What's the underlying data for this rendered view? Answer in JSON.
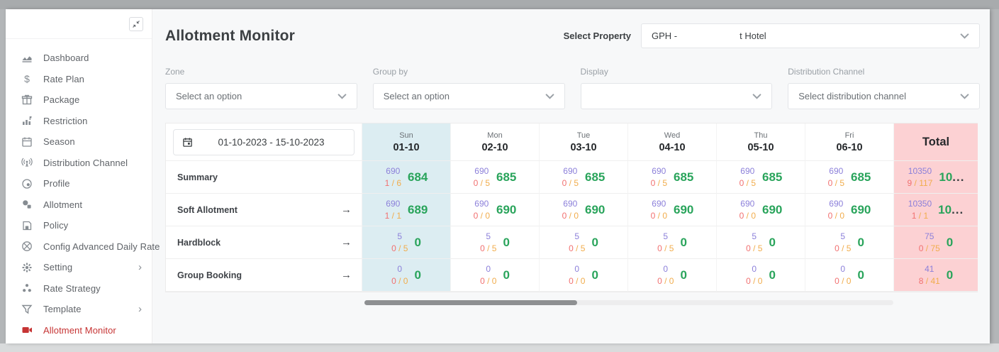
{
  "header": {
    "title": "Allotment Monitor",
    "select_property_label": "Select Property",
    "property_code": "GPH -",
    "property_name": "t Hotel"
  },
  "sidebar": {
    "items": [
      {
        "label": "Dashboard",
        "icon": "dashboard-icon"
      },
      {
        "label": "Rate Plan",
        "icon": "dollar-icon"
      },
      {
        "label": "Package",
        "icon": "package-icon"
      },
      {
        "label": "Restriction",
        "icon": "restriction-icon"
      },
      {
        "label": "Season",
        "icon": "calendar-icon"
      },
      {
        "label": "Distribution Channel",
        "icon": "broadcast-icon"
      },
      {
        "label": "Profile",
        "icon": "profile-icon"
      },
      {
        "label": "Allotment",
        "icon": "allotment-icon"
      },
      {
        "label": "Policy",
        "icon": "policy-icon"
      },
      {
        "label": "Config Advanced Daily Rate",
        "icon": "config-icon"
      },
      {
        "label": "Setting",
        "icon": "gear-icon",
        "has_submenu": true
      },
      {
        "label": "Rate Strategy",
        "icon": "strategy-icon"
      },
      {
        "label": "Template",
        "icon": "funnel-icon",
        "has_submenu": true
      },
      {
        "label": "Allotment Monitor",
        "icon": "monitor-icon",
        "active": true
      }
    ]
  },
  "filters": [
    {
      "label": "Zone",
      "value": "Select an option"
    },
    {
      "label": "Group by",
      "value": "Select an option"
    },
    {
      "label": "Display",
      "value": ""
    },
    {
      "label": "Distribution Channel",
      "value": "Select distribution channel"
    }
  ],
  "table": {
    "date_range": "01-10-2023 - 15-10-2023",
    "total_label": "Total",
    "columns": [
      {
        "day": "Sun",
        "date": "01-10",
        "highlight": true
      },
      {
        "day": "Mon",
        "date": "02-10"
      },
      {
        "day": "Tue",
        "date": "03-10"
      },
      {
        "day": "Wed",
        "date": "04-10"
      },
      {
        "day": "Thu",
        "date": "05-10"
      },
      {
        "day": "Fri",
        "date": "06-10"
      }
    ],
    "rows": [
      {
        "label": "Summary",
        "has_arrow": false,
        "cells": [
          {
            "capacity": "690",
            "used": "1",
            "of": "6",
            "available": "684"
          },
          {
            "capacity": "690",
            "used": "0",
            "of": "5",
            "available": "685"
          },
          {
            "capacity": "690",
            "used": "0",
            "of": "5",
            "available": "685"
          },
          {
            "capacity": "690",
            "used": "0",
            "of": "5",
            "available": "685"
          },
          {
            "capacity": "690",
            "used": "0",
            "of": "5",
            "available": "685"
          },
          {
            "capacity": "690",
            "used": "0",
            "of": "5",
            "available": "685"
          }
        ],
        "total": {
          "capacity": "10350",
          "used": "9",
          "of": "117",
          "available": "10",
          "truncated": true
        }
      },
      {
        "label": "Soft Allotment",
        "has_arrow": true,
        "cells": [
          {
            "capacity": "690",
            "used": "1",
            "of": "1",
            "available": "689"
          },
          {
            "capacity": "690",
            "used": "0",
            "of": "0",
            "available": "690"
          },
          {
            "capacity": "690",
            "used": "0",
            "of": "0",
            "available": "690"
          },
          {
            "capacity": "690",
            "used": "0",
            "of": "0",
            "available": "690"
          },
          {
            "capacity": "690",
            "used": "0",
            "of": "0",
            "available": "690"
          },
          {
            "capacity": "690",
            "used": "0",
            "of": "0",
            "available": "690"
          }
        ],
        "total": {
          "capacity": "10350",
          "used": "1",
          "of": "1",
          "available": "10",
          "truncated": true
        }
      },
      {
        "label": "Hardblock",
        "has_arrow": true,
        "cells": [
          {
            "capacity": "5",
            "used": "0",
            "of": "5",
            "available": "0"
          },
          {
            "capacity": "5",
            "used": "0",
            "of": "5",
            "available": "0"
          },
          {
            "capacity": "5",
            "used": "0",
            "of": "5",
            "available": "0"
          },
          {
            "capacity": "5",
            "used": "0",
            "of": "5",
            "available": "0"
          },
          {
            "capacity": "5",
            "used": "0",
            "of": "5",
            "available": "0"
          },
          {
            "capacity": "5",
            "used": "0",
            "of": "5",
            "available": "0"
          }
        ],
        "total": {
          "capacity": "75",
          "used": "0",
          "of": "75",
          "available": "0"
        }
      },
      {
        "label": "Group Booking",
        "has_arrow": true,
        "cells": [
          {
            "capacity": "0",
            "used": "0",
            "of": "0",
            "available": "0"
          },
          {
            "capacity": "0",
            "used": "0",
            "of": "0",
            "available": "0"
          },
          {
            "capacity": "0",
            "used": "0",
            "of": "0",
            "available": "0"
          },
          {
            "capacity": "0",
            "used": "0",
            "of": "0",
            "available": "0"
          },
          {
            "capacity": "0",
            "used": "0",
            "of": "0",
            "available": "0"
          },
          {
            "capacity": "0",
            "used": "0",
            "of": "0",
            "available": "0"
          }
        ],
        "total": {
          "capacity": "41",
          "used": "8",
          "of": "41",
          "available": "0"
        }
      }
    ]
  },
  "colors": {
    "accent_red": "#c63434",
    "sun_column_bg": "#dcedf2",
    "total_column_bg": "#fcd1d3",
    "capacity_purple": "#8c80da",
    "used_red": "#f17171",
    "of_orange": "#f1ad4d",
    "available_green": "#29a45b"
  }
}
